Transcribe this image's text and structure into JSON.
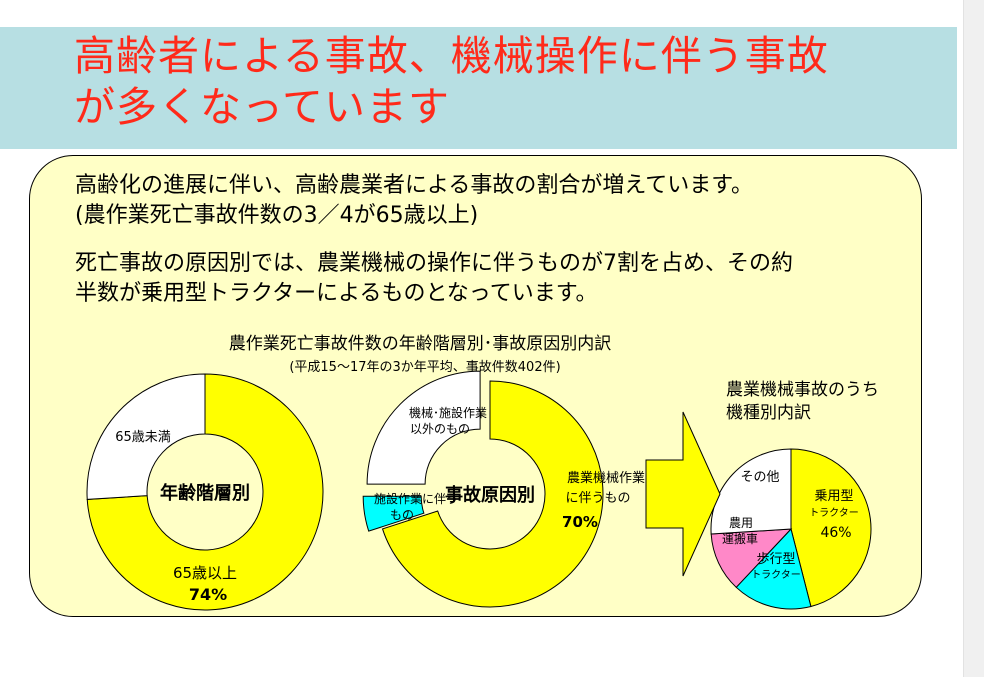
{
  "title": {
    "line1": "高齢者による事故、機械操作に伴う事故",
    "line2": "が多くなっています"
  },
  "paragraphs": {
    "p1_line1": "高齢化の進展に伴い、高齢農業者による事故の割合が増えています。",
    "p1_line2": "(農作業死亡事故件数の3／4が65歳以上)",
    "p2_line1": "死亡事故の原因別では、農業機械の操作に伴うものが7割を占め、その約",
    "p2_line2": "半数が乗用型トラクターによるものとなっています。"
  },
  "figure": {
    "heading": "農作業死亡事故件数の年齢階層別･事故原因別内訳",
    "note": "(平成15～17年の3か年平均、事故件数402件)",
    "sub_heading_line1": "農業機械事故のうち",
    "sub_heading_line2": "機種別内訳"
  },
  "colors": {
    "yellow": "#ffff00",
    "cyan": "#00ffff",
    "pink": "#ff88c8",
    "white": "#ffffff",
    "title_red": "#ff2a1a",
    "title_band": "#b7dfe3",
    "panel": "#ffffc6"
  },
  "chart_data": [
    {
      "type": "pie",
      "variant": "donut",
      "center_label": "年齢階層別",
      "slices": [
        {
          "label": "65歳以上",
          "value": 74,
          "value_label": "74%",
          "color": "#ffff00"
        },
        {
          "label": "65歳未満",
          "value": 26,
          "value_label": "",
          "color": "#ffffff"
        }
      ]
    },
    {
      "type": "pie",
      "variant": "donut",
      "center_label": "事故原因別",
      "slices": [
        {
          "label": "農業機械作業に伴うもの",
          "label_line1": "農業機械作業",
          "label_line2": "に伴うもの",
          "value": 70,
          "value_label": "70%",
          "color": "#ffff00"
        },
        {
          "label": "施設作業に伴うもの",
          "label_line1": "施設作業に伴う",
          "label_line2": "もの",
          "value": 5,
          "value_label": "",
          "color": "#00ffff"
        },
        {
          "label": "機械･施設作業以外のもの",
          "label_line1": "機械･施設作業",
          "label_line2": "以外のもの",
          "value": 25,
          "value_label": "",
          "color": "#ffffff"
        }
      ]
    },
    {
      "type": "pie",
      "slices": [
        {
          "label": "乗用型トラクター",
          "label_line1": "乗用型",
          "label_line2": "トラクター",
          "value": 46,
          "value_label": "46%",
          "color": "#ffff00"
        },
        {
          "label": "歩行型トラクター",
          "label_line1": "歩行型",
          "label_line2": "トラクター",
          "value": 16,
          "value_label": "",
          "color": "#00ffff"
        },
        {
          "label": "農用運搬車",
          "label_line1": "農用",
          "label_line2": "運搬車",
          "value": 12,
          "value_label": "",
          "color": "#ff88c8"
        },
        {
          "label": "その他",
          "value": 26,
          "value_label": "",
          "color": "#ffffff"
        }
      ]
    }
  ]
}
